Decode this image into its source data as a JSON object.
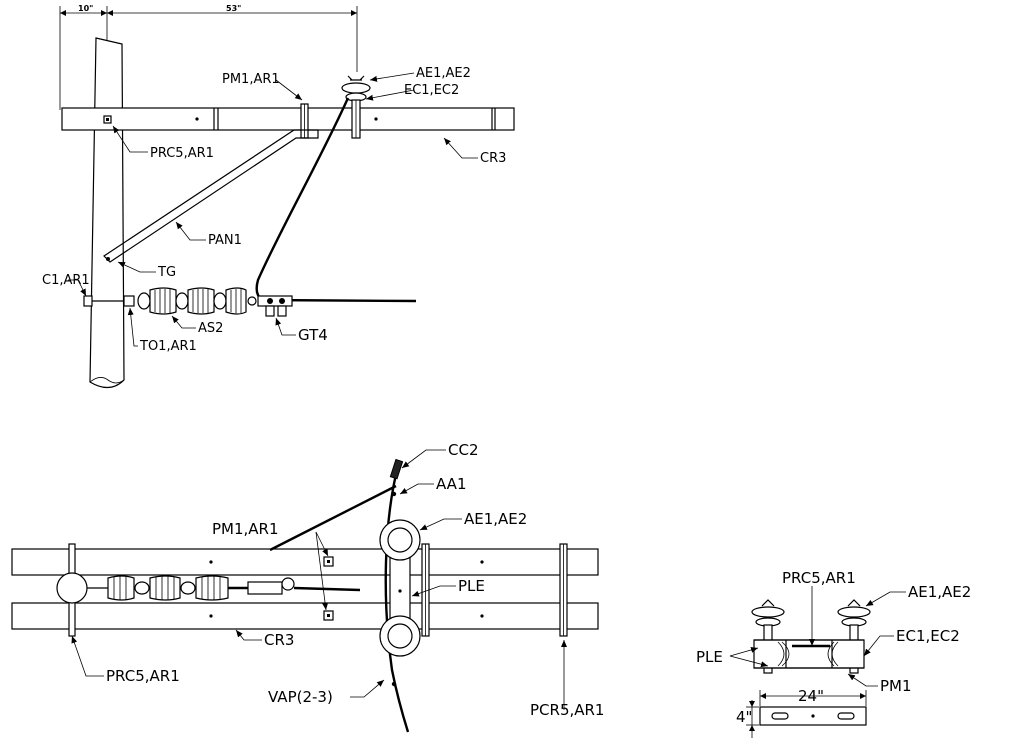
{
  "labels": {
    "dim_10": "10\"",
    "dim_53": "53\"",
    "pm1_top": "PM1,AR1",
    "ae_top": "AE1,AE2",
    "ec_top": "EC1,EC2",
    "prc5_top": "PRC5,AR1",
    "cr3_top": "CR3",
    "pan1": "PAN1",
    "tg": "TG",
    "c1": "C1,AR1",
    "as2": "AS2",
    "gt4": "GT4",
    "to1": "TO1,AR1",
    "cc2": "CC2",
    "aa1": "AA1",
    "pm1_bot": "PM1,AR1",
    "ae_bot": "AE1,AE2",
    "ple_bot": "PLE",
    "prc5_bot": "PRC5,AR1",
    "cr3_bot": "CR3",
    "vap": "VAP(2-3)",
    "pcr5": "PCR5,AR1",
    "prc5_detail": "PRC5,AR1",
    "ae_detail": "AE1,AE2",
    "ple_detail": "PLE",
    "ec_detail": "EC1,EC2",
    "pm1_detail": "PM1",
    "dim_24": "24\"",
    "dim_4": "4\""
  }
}
